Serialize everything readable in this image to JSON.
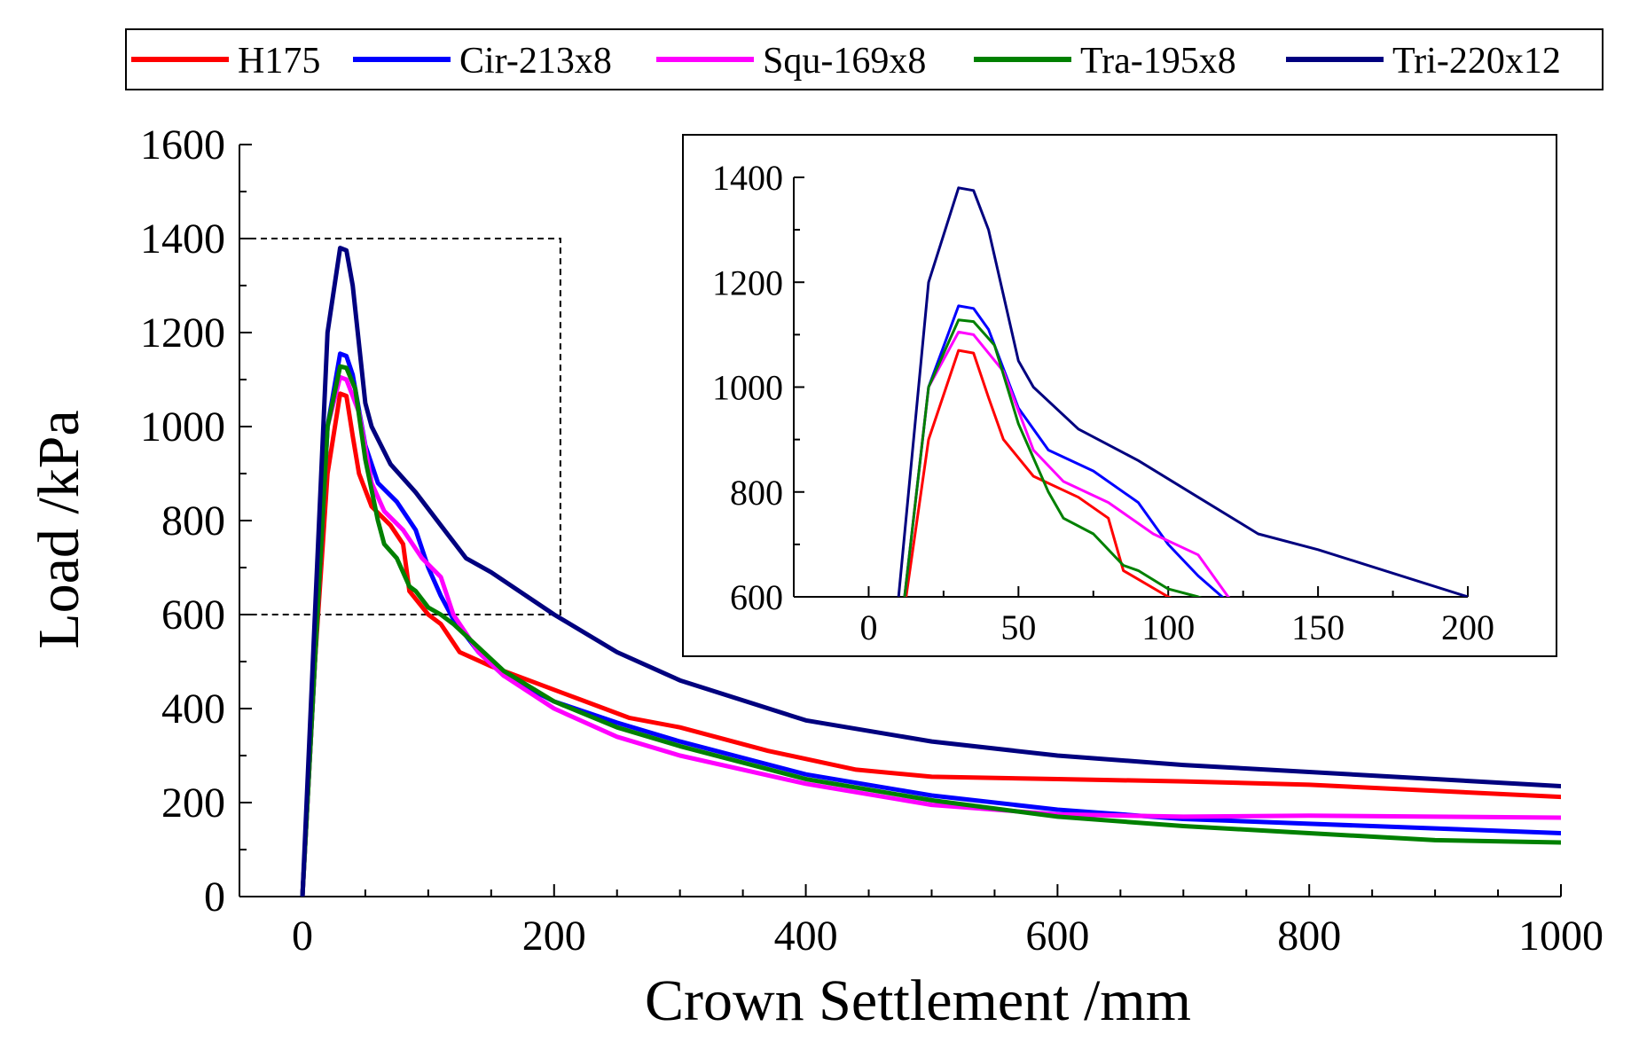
{
  "chart_data": [
    {
      "type": "line",
      "xlabel": "Crown Settlement /mm",
      "ylabel": "Load /kPa",
      "xlim": [
        -50,
        1000
      ],
      "ylim": [
        0,
        1600
      ],
      "xticks": [
        0,
        200,
        400,
        600,
        800,
        1000
      ],
      "yticks": [
        0,
        200,
        400,
        600,
        800,
        1000,
        1200,
        1400,
        1600
      ],
      "grid": false,
      "legend": "top, outside plot",
      "zoom_region": {
        "x": [
          -50,
          205
        ],
        "y": [
          600,
          1400
        ]
      },
      "series": [
        {
          "name": "H175",
          "color": "#ff0000",
          "points": [
            [
              0,
              0
            ],
            [
              10,
              500
            ],
            [
              20,
              900
            ],
            [
              30,
              1070
            ],
            [
              35,
              1065
            ],
            [
              40,
              980
            ],
            [
              45,
              900
            ],
            [
              55,
              830
            ],
            [
              70,
              790
            ],
            [
              80,
              750
            ],
            [
              85,
              650
            ],
            [
              100,
              600
            ],
            [
              110,
              580
            ],
            [
              125,
              520
            ],
            [
              150,
              490
            ],
            [
              180,
              460
            ],
            [
              200,
              440
            ],
            [
              220,
              420
            ],
            [
              260,
              380
            ],
            [
              300,
              360
            ],
            [
              370,
              310
            ],
            [
              440,
              270
            ],
            [
              500,
              255
            ],
            [
              600,
              250
            ],
            [
              700,
              245
            ],
            [
              800,
              238
            ],
            [
              900,
              225
            ],
            [
              1000,
              212
            ]
          ]
        },
        {
          "name": "Cir-213x8",
          "color": "#0000ff",
          "points": [
            [
              0,
              0
            ],
            [
              10,
              500
            ],
            [
              20,
              1000
            ],
            [
              30,
              1155
            ],
            [
              35,
              1150
            ],
            [
              40,
              1110
            ],
            [
              50,
              960
            ],
            [
              60,
              880
            ],
            [
              75,
              840
            ],
            [
              90,
              780
            ],
            [
              100,
              700
            ],
            [
              110,
              640
            ],
            [
              120,
              590
            ],
            [
              140,
              520
            ],
            [
              160,
              470
            ],
            [
              200,
              415
            ],
            [
              250,
              370
            ],
            [
              300,
              330
            ],
            [
              400,
              260
            ],
            [
              500,
              215
            ],
            [
              600,
              185
            ],
            [
              700,
              165
            ],
            [
              800,
              155
            ],
            [
              900,
              145
            ],
            [
              1000,
              135
            ]
          ]
        },
        {
          "name": "Squ-169x8",
          "color": "#ff00ff",
          "points": [
            [
              0,
              0
            ],
            [
              10,
              500
            ],
            [
              20,
              1000
            ],
            [
              30,
              1105
            ],
            [
              35,
              1100
            ],
            [
              45,
              1030
            ],
            [
              55,
              880
            ],
            [
              65,
              820
            ],
            [
              80,
              780
            ],
            [
              95,
              720
            ],
            [
              110,
              680
            ],
            [
              120,
              600
            ],
            [
              140,
              520
            ],
            [
              160,
              470
            ],
            [
              200,
              400
            ],
            [
              250,
              340
            ],
            [
              300,
              300
            ],
            [
              400,
              240
            ],
            [
              500,
              195
            ],
            [
              600,
              175
            ],
            [
              700,
              170
            ],
            [
              800,
              172
            ],
            [
              900,
              170
            ],
            [
              1000,
              168
            ]
          ]
        },
        {
          "name": "Tra-195x8",
          "color": "#008000",
          "points": [
            [
              0,
              0
            ],
            [
              10,
              500
            ],
            [
              20,
              1000
            ],
            [
              30,
              1128
            ],
            [
              35,
              1125
            ],
            [
              42,
              1080
            ],
            [
              50,
              930
            ],
            [
              60,
              800
            ],
            [
              65,
              750
            ],
            [
              75,
              720
            ],
            [
              85,
              660
            ],
            [
              90,
              650
            ],
            [
              100,
              615
            ],
            [
              110,
              600
            ],
            [
              120,
              580
            ],
            [
              140,
              530
            ],
            [
              160,
              480
            ],
            [
              200,
              415
            ],
            [
              250,
              360
            ],
            [
              300,
              320
            ],
            [
              400,
              250
            ],
            [
              500,
              205
            ],
            [
              600,
              170
            ],
            [
              700,
              150
            ],
            [
              800,
              135
            ],
            [
              900,
              120
            ],
            [
              1000,
              115
            ]
          ]
        },
        {
          "name": "Tri-220x12",
          "color": "#00007f",
          "points": [
            [
              0,
              0
            ],
            [
              10,
              600
            ],
            [
              20,
              1200
            ],
            [
              30,
              1380
            ],
            [
              35,
              1375
            ],
            [
              40,
              1300
            ],
            [
              50,
              1050
            ],
            [
              55,
              1000
            ],
            [
              70,
              920
            ],
            [
              90,
              860
            ],
            [
              110,
              790
            ],
            [
              130,
              720
            ],
            [
              150,
              690
            ],
            [
              200,
              600
            ],
            [
              250,
              520
            ],
            [
              300,
              460
            ],
            [
              400,
              375
            ],
            [
              500,
              330
            ],
            [
              600,
              300
            ],
            [
              700,
              280
            ],
            [
              800,
              265
            ],
            [
              900,
              250
            ],
            [
              1000,
              235
            ]
          ]
        }
      ]
    },
    {
      "type": "line",
      "inset": true,
      "xlim": [
        -25,
        200
      ],
      "ylim": [
        600,
        1400
      ],
      "xticks": [
        0,
        50,
        100,
        150,
        200
      ],
      "yticks": [
        600,
        800,
        1000,
        1200,
        1400
      ],
      "grid": false
    }
  ]
}
